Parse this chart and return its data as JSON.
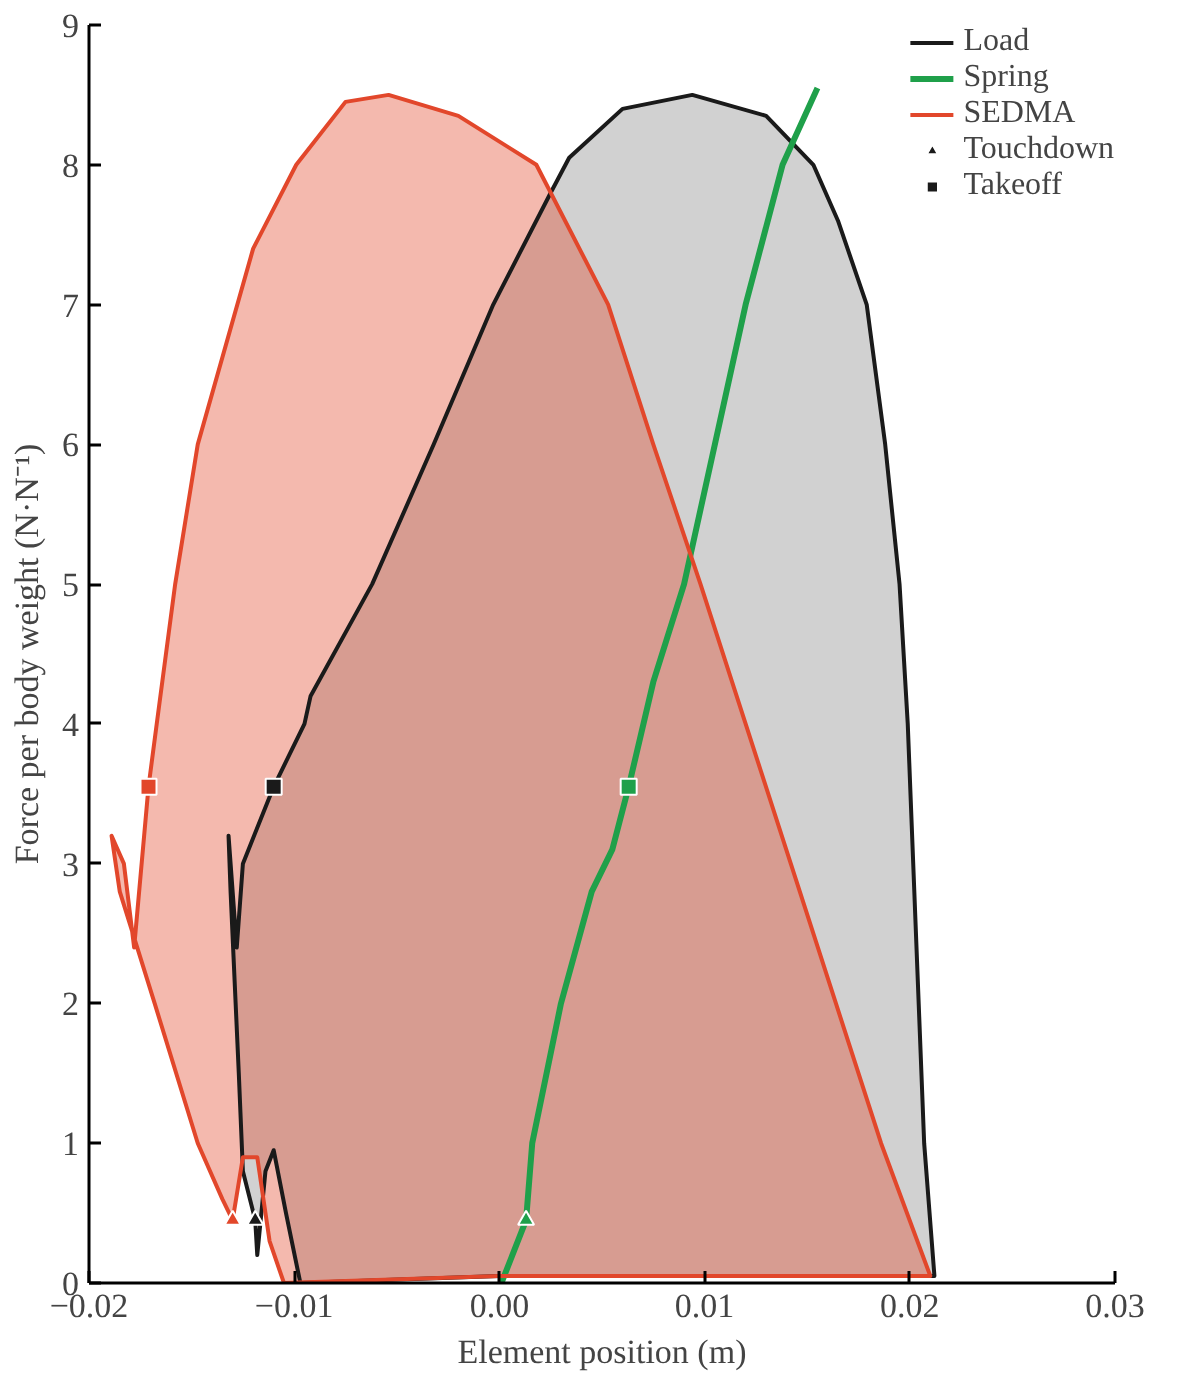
{
  "chart_data": {
    "type": "area",
    "xlabel": "Element position (m)",
    "ylabel": "Force per body weight (N·N⁻¹)",
    "xlim": [
      -0.02,
      0.03
    ],
    "xticks": [
      {
        "value": -0.02,
        "label": "−0.02"
      },
      {
        "value": -0.01,
        "label": "−0.01"
      },
      {
        "value": 0,
        "label": "0.00"
      },
      0.01,
      0.02,
      0.03
    ],
    "ylim": [
      0,
      9
    ],
    "yticks": [
      0,
      1,
      2,
      3,
      4,
      5,
      6,
      7,
      8,
      9
    ],
    "grid": false,
    "legend": "top right",
    "series": [
      {
        "name": "Load",
        "color": "#1a1a1a",
        "x": [
          -0.0119,
          -0.0118,
          -0.0114,
          -0.011,
          -0.0104,
          -0.0097,
          0.0,
          0.01,
          0.0212,
          0.0207,
          0.0199,
          0.0195,
          0.0188,
          0.0179,
          0.0165,
          0.0153,
          0.013,
          0.0094,
          0.006,
          0.0034,
          0.0025,
          -0.0003,
          -0.0032,
          -0.0062,
          -0.0092,
          -0.0095,
          -0.011,
          -0.0125,
          -0.0128,
          -0.0132,
          -0.0131,
          -0.0127,
          -0.0125,
          -0.0119
        ],
        "values": [
          0.45,
          0.2,
          0.8,
          0.95,
          0.5,
          0.0,
          0.05,
          0.05,
          0.05,
          1,
          4,
          5,
          6,
          7,
          7.6,
          8.0,
          8.35,
          8.5,
          8.4,
          8.05,
          7.8,
          7,
          6,
          5,
          4.2,
          4,
          3.55,
          3,
          2.4,
          3.2,
          2.8,
          1.5,
          0.8,
          0.45
        ]
      },
      {
        "name": "Spring",
        "type": "line",
        "color": "#1fa04a",
        "x": [
          0.0001,
          0.0013,
          0.0016,
          0.003,
          0.0045,
          0.0055,
          0.0063,
          0.0075,
          0.009,
          0.0105,
          0.012,
          0.0138,
          0.0155
        ],
        "values": [
          0,
          0.45,
          1,
          2,
          2.8,
          3.1,
          3.55,
          4.3,
          5.0,
          6,
          7,
          8,
          8.55
        ]
      },
      {
        "name": "SEDMA",
        "color": "#e2472b",
        "x": [
          -0.013,
          -0.0125,
          -0.0118,
          -0.0112,
          -0.0105,
          0.0,
          0.01,
          0.021,
          0.0186,
          0.0164,
          0.0142,
          0.012,
          0.0098,
          0.0075,
          0.0053,
          0.0018,
          -0.002,
          -0.0054,
          -0.0075,
          -0.0099,
          -0.012,
          -0.0147,
          -0.0158,
          -0.0167,
          -0.0171,
          -0.0178,
          -0.0183,
          -0.0189,
          -0.0185,
          -0.0168,
          -0.0147,
          -0.0135,
          -0.013
        ],
        "values": [
          0.45,
          0.9,
          0.9,
          0.3,
          0.0,
          0.05,
          0.05,
          0.05,
          1,
          2,
          3,
          4,
          5,
          6,
          7,
          8,
          8.35,
          8.5,
          8.45,
          8.0,
          7.4,
          6,
          5,
          4,
          3.55,
          2.4,
          3.0,
          3.2,
          2.8,
          2,
          1,
          0.6,
          0.45
        ]
      },
      {
        "name": "Touchdown",
        "type": "scatter",
        "marker": "triangle",
        "color": "#1a1a1a",
        "x": [
          -0.013,
          -0.0119,
          0.0013
        ],
        "values": [
          0.45,
          0.45,
          0.45
        ],
        "colors": [
          "#e2472b",
          "#1a1a1a",
          "#1fa04a"
        ]
      },
      {
        "name": "Takeoff",
        "type": "scatter",
        "marker": "square",
        "color": "#1a1a1a",
        "x": [
          -0.0171,
          -0.011,
          0.0063
        ],
        "values": [
          3.55,
          3.55,
          3.55
        ],
        "colors": [
          "#e2472b",
          "#1a1a1a",
          "#1fa04a"
        ]
      }
    ]
  }
}
